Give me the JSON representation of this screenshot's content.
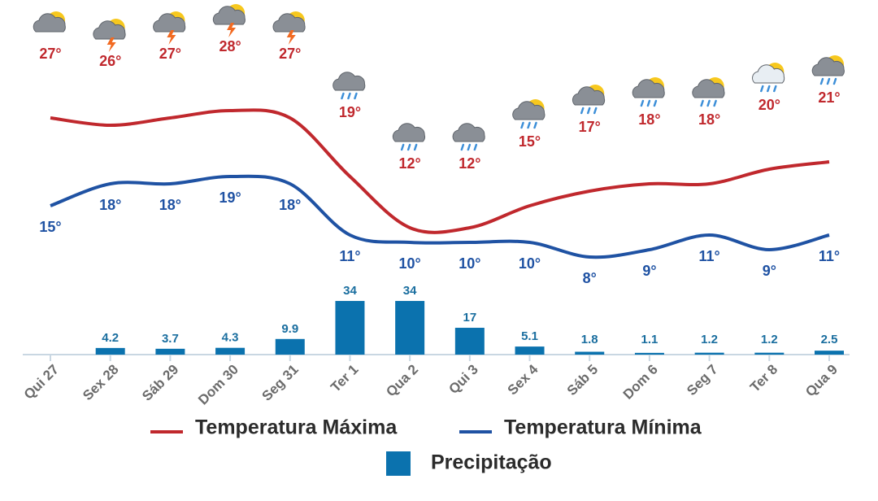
{
  "chart_data": {
    "type": "combo",
    "categories": [
      "Qui 27",
      "Sex 28",
      "Sáb 29",
      "Dom 30",
      "Seg 31",
      "Ter 1",
      "Qua 2",
      "Qui 3",
      "Sex 4",
      "Sáb 5",
      "Dom 6",
      "Seg 7",
      "Ter 8",
      "Qua 9"
    ],
    "series": [
      {
        "name": "Temperatura Máxima",
        "type": "line",
        "color": "#c0282d",
        "values": [
          27,
          26,
          27,
          28,
          27,
          19,
          12,
          12,
          15,
          17,
          18,
          18,
          20,
          21
        ],
        "value_labels": [
          "27°",
          "26°",
          "27°",
          "28°",
          "27°",
          "19°",
          "12°",
          "12°",
          "15°",
          "17°",
          "18°",
          "18°",
          "20°",
          "21°"
        ]
      },
      {
        "name": "Temperatura Mínima",
        "type": "line",
        "color": "#1f52a3",
        "values": [
          15,
          18,
          18,
          19,
          18,
          11,
          10,
          10,
          10,
          8,
          9,
          11,
          9,
          11
        ],
        "value_labels": [
          "15°",
          "18°",
          "18°",
          "19°",
          "18°",
          "11°",
          "10°",
          "10°",
          "10°",
          "8°",
          "9°",
          "11°",
          "9°",
          "11°"
        ]
      },
      {
        "name": "Precipitação",
        "type": "bar",
        "color": "#0b72ae",
        "values": [
          null,
          4.2,
          3.7,
          4.3,
          9.9,
          34,
          34,
          17,
          5.1,
          1.8,
          1.1,
          1.2,
          1.2,
          2.5
        ]
      }
    ]
  }
}
